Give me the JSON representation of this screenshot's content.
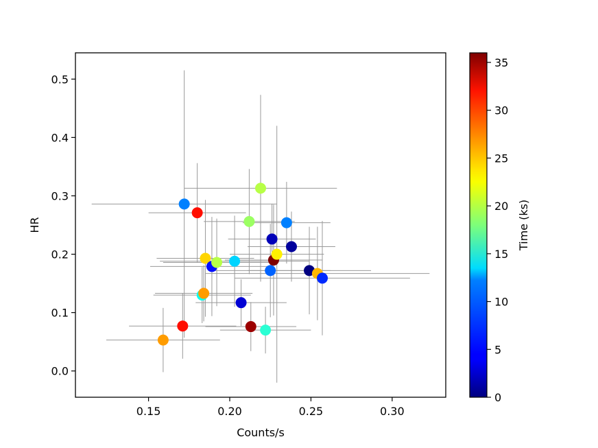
{
  "chart_data": {
    "type": "scatter",
    "xlabel": "Counts/s",
    "ylabel": "HR",
    "xlim": [
      0.105,
      0.333
    ],
    "ylim": [
      -0.045,
      0.545
    ],
    "xticks": [
      0.15,
      0.2,
      0.25,
      0.3
    ],
    "xtick_labels": [
      "0.15",
      "0.20",
      "0.25",
      "0.30"
    ],
    "yticks": [
      0.0,
      0.1,
      0.2,
      0.3,
      0.4,
      0.5
    ],
    "ytick_labels": [
      "0.0",
      "0.1",
      "0.2",
      "0.3",
      "0.4",
      "0.5"
    ],
    "colorbar": {
      "label": "Time (ks)",
      "colormap": "jet",
      "range": [
        0,
        36
      ],
      "ticks": [
        0,
        5,
        10,
        15,
        20,
        25,
        30,
        35
      ],
      "tick_labels": [
        "0",
        "5",
        "10",
        "15",
        "20",
        "25",
        "30",
        "35"
      ]
    },
    "grid": false,
    "errorbar_color": "#999999",
    "points": [
      {
        "x": 0.159,
        "y": 0.053,
        "xerr": 0.035,
        "yerr": 0.055,
        "t": 26
      },
      {
        "x": 0.171,
        "y": 0.077,
        "xerr": 0.033,
        "yerr": 0.056,
        "t": 31
      },
      {
        "x": 0.172,
        "y": 0.286,
        "xerr": 0.057,
        "yerr": 0.229,
        "t": 9
      },
      {
        "x": 0.18,
        "y": 0.271,
        "xerr": 0.03,
        "yerr": 0.085,
        "t": 31
      },
      {
        "x": 0.183,
        "y": 0.13,
        "xerr": 0.03,
        "yerr": 0.048,
        "t": 14
      },
      {
        "x": 0.184,
        "y": 0.133,
        "xerr": 0.03,
        "yerr": 0.048,
        "t": 26
      },
      {
        "x": 0.185,
        "y": 0.193,
        "xerr": 0.03,
        "yerr": 0.1,
        "t": 24
      },
      {
        "x": 0.189,
        "y": 0.179,
        "xerr": 0.038,
        "yerr": 0.085,
        "t": 5
      },
      {
        "x": 0.192,
        "y": 0.186,
        "xerr": 0.033,
        "yerr": 0.075,
        "t": 20
      },
      {
        "x": 0.203,
        "y": 0.188,
        "xerr": 0.046,
        "yerr": 0.078,
        "t": 12
      },
      {
        "x": 0.207,
        "y": 0.117,
        "xerr": 0.028,
        "yerr": 0.04,
        "t": 3
      },
      {
        "x": 0.212,
        "y": 0.256,
        "xerr": 0.028,
        "yerr": 0.09,
        "t": 19
      },
      {
        "x": 0.213,
        "y": 0.076,
        "xerr": 0.028,
        "yerr": 0.042,
        "t": 35
      },
      {
        "x": 0.219,
        "y": 0.313,
        "xerr": 0.047,
        "yerr": 0.16,
        "t": 20
      },
      {
        "x": 0.222,
        "y": 0.07,
        "xerr": 0.028,
        "yerr": 0.04,
        "t": 15
      },
      {
        "x": 0.225,
        "y": 0.172,
        "xerr": 0.037,
        "yerr": 0.08,
        "t": 8
      },
      {
        "x": 0.226,
        "y": 0.226,
        "xerr": 0.027,
        "yerr": 0.06,
        "t": 2
      },
      {
        "x": 0.227,
        "y": 0.19,
        "xerr": 0.03,
        "yerr": 0.095,
        "t": 36
      },
      {
        "x": 0.229,
        "y": 0.2,
        "xerr": 0.029,
        "yerr": 0.22,
        "t": 23
      },
      {
        "x": 0.235,
        "y": 0.254,
        "xerr": 0.027,
        "yerr": 0.07,
        "t": 9
      },
      {
        "x": 0.238,
        "y": 0.213,
        "xerr": 0.027,
        "yerr": 0.06,
        "t": 1
      },
      {
        "x": 0.249,
        "y": 0.172,
        "xerr": 0.038,
        "yerr": 0.075,
        "t": 0
      },
      {
        "x": 0.254,
        "y": 0.167,
        "xerr": 0.069,
        "yerr": 0.08,
        "t": 25
      },
      {
        "x": 0.257,
        "y": 0.159,
        "xerr": 0.054,
        "yerr": 0.098,
        "t": 6
      }
    ]
  }
}
